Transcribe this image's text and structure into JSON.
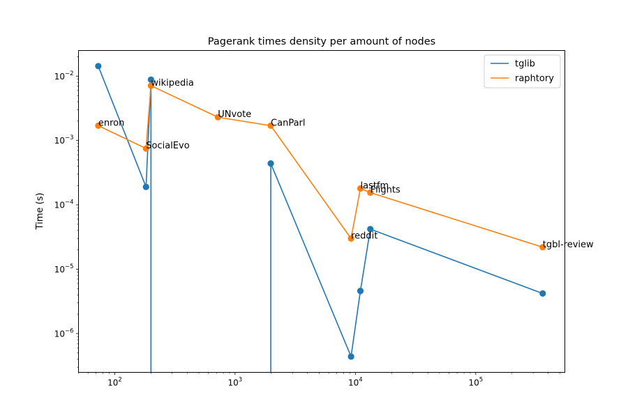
{
  "chart_data": {
    "type": "line",
    "title": "Pagerank times density per amount of nodes",
    "xlabel": "",
    "ylabel": "Time (s)",
    "xscale": "log",
    "yscale": "log",
    "xlim": [
      50,
      550000
    ],
    "ylim": [
      2.5e-07,
      0.025
    ],
    "x_ticks": [
      {
        "value": 100,
        "base": "10",
        "exp": "2"
      },
      {
        "value": 1000,
        "base": "10",
        "exp": "3"
      },
      {
        "value": 10000,
        "base": "10",
        "exp": "4"
      },
      {
        "value": 100000,
        "base": "10",
        "exp": "5"
      }
    ],
    "y_ticks": [
      {
        "value": 1e-06,
        "base": "10",
        "exp": "−6"
      },
      {
        "value": 1e-05,
        "base": "10",
        "exp": "−5"
      },
      {
        "value": 0.0001,
        "base": "10",
        "exp": "−4"
      },
      {
        "value": 0.001,
        "base": "10",
        "exp": "−3"
      },
      {
        "value": 0.01,
        "base": "10",
        "exp": "−2"
      }
    ],
    "grid": false,
    "legend_position": "upper right",
    "series": [
      {
        "name": "tglib",
        "color": "#1f77b4",
        "points": [
          {
            "x": 73,
            "y": 0.0143
          },
          {
            "x": 182,
            "y": 0.00019
          },
          {
            "x": 200,
            "y": 0.0088
          },
          {
            "x": 720,
            "y": null
          },
          {
            "x": 1980,
            "y": 0.00044
          },
          {
            "x": 9200,
            "y": 4.4e-07
          },
          {
            "x": 11000,
            "y": 4.6e-06
          },
          {
            "x": 13300,
            "y": 4.2e-05
          },
          {
            "x": 360000,
            "y": 4.2e-06
          }
        ]
      },
      {
        "name": "raphtory",
        "color": "#ff7f0e",
        "points": [
          {
            "x": 73,
            "y": 0.0017
          },
          {
            "x": 182,
            "y": 0.00075
          },
          {
            "x": 200,
            "y": 0.0071
          },
          {
            "x": 720,
            "y": 0.0023
          },
          {
            "x": 1980,
            "y": 0.0017
          },
          {
            "x": 9200,
            "y": 3e-05
          },
          {
            "x": 11000,
            "y": 0.00018
          },
          {
            "x": 13300,
            "y": 0.000155
          },
          {
            "x": 360000,
            "y": 2.2e-05
          }
        ]
      }
    ],
    "annotations": [
      {
        "text": "enron",
        "x": 73,
        "y": 0.0017
      },
      {
        "text": "SocialEvo",
        "x": 182,
        "y": 0.00075
      },
      {
        "text": "wikipedia",
        "x": 200,
        "y": 0.0071
      },
      {
        "text": "UNvote",
        "x": 720,
        "y": 0.0023
      },
      {
        "text": "CanParl",
        "x": 1980,
        "y": 0.0017
      },
      {
        "text": "reddit",
        "x": 9200,
        "y": 3e-05
      },
      {
        "text": "lastfm",
        "x": 11000,
        "y": 0.00018
      },
      {
        "text": "Flights",
        "x": 13300,
        "y": 0.000155
      },
      {
        "text": "tgbl-review",
        "x": 360000,
        "y": 2.2e-05
      }
    ]
  }
}
